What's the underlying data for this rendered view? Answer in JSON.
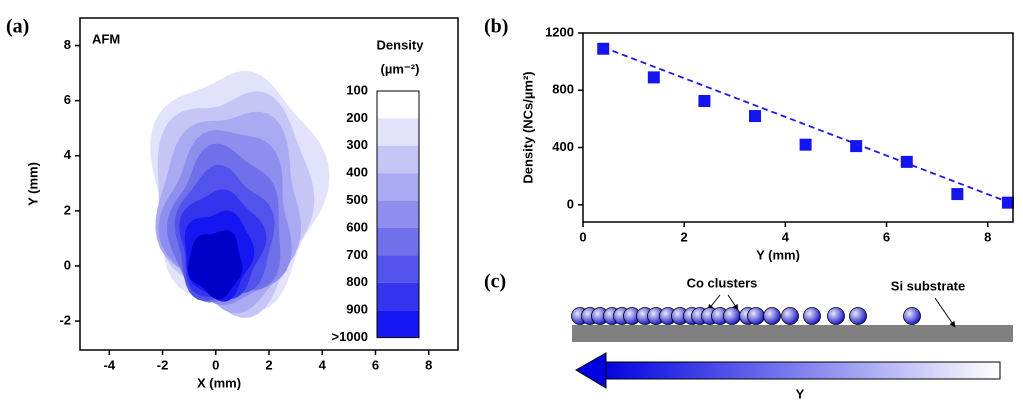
{
  "panel_labels": [
    "(a)",
    "(b)",
    "(c)"
  ],
  "chart_data": [
    {
      "type": "contour",
      "title": "AFM",
      "colorbar_title": [
        "Density",
        "(µm⁻²)"
      ],
      "x_label": "X (mm)",
      "y_label": "Y (mm)",
      "xlim": [
        -5.1,
        9.1
      ],
      "ylim": [
        -3.05,
        9
      ],
      "xticks": [
        -4,
        -2,
        0,
        2,
        4,
        6,
        8
      ],
      "yticks": [
        -2,
        0,
        2,
        4,
        6,
        8
      ],
      "levels": [
        100,
        200,
        300,
        400,
        500,
        600,
        700,
        800,
        900,
        {
          "value": 1000,
          "label": ">1000"
        }
      ],
      "colors": [
        "#ffffff",
        "#e2e2fa",
        "#c6c6f6",
        "#aaaaf2",
        "#8e8eee",
        "#7070ea",
        "#5252ec",
        "#3434ef",
        "#1616f3",
        "#0000c8"
      ]
    },
    {
      "type": "scatter",
      "x_label": "Y (mm)",
      "y_label": "Density (NCs/µm²)",
      "xlim": [
        0,
        8.5
      ],
      "ylim": [
        -120,
        1200
      ],
      "xticks": [
        0,
        2,
        4,
        6,
        8
      ],
      "yticks": [
        0,
        400,
        800,
        1200
      ],
      "series": [
        {
          "type": "scatter",
          "color": "#1414f0",
          "x": [
            0.4,
            1.4,
            2.4,
            3.4,
            4.4,
            5.4,
            6.4,
            7.4,
            8.4
          ],
          "values": [
            1090,
            890,
            725,
            620,
            420,
            410,
            300,
            75,
            15
          ]
        },
        {
          "type": "line",
          "dashed": true,
          "color": "#1a1ae0",
          "x": [
            0.4,
            8.4
          ],
          "values": [
            1100,
            20
          ]
        }
      ]
    }
  ],
  "diagram": {
    "labels": [
      "Co clusters",
      "Si substrate"
    ],
    "arrow_label": "Y"
  }
}
